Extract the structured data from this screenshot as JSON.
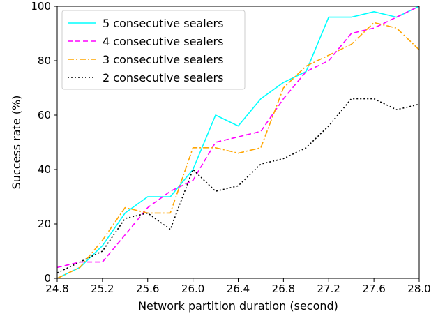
{
  "chart_data": {
    "type": "line",
    "xlabel": "Network partition duration (second)",
    "ylabel": "Success rate (%)",
    "xlim": [
      24.8,
      28.0
    ],
    "ylim": [
      0,
      100
    ],
    "xticks": [
      "24.8",
      "25.2",
      "25.6",
      "26.0",
      "26.4",
      "26.8",
      "27.2",
      "27.6",
      "28.0"
    ],
    "yticks": [
      "0",
      "20",
      "40",
      "60",
      "80",
      "100"
    ],
    "grid": false,
    "legend_position": "top-left",
    "x": [
      24.8,
      25.0,
      25.2,
      25.4,
      25.6,
      25.8,
      26.0,
      26.2,
      26.4,
      26.6,
      26.8,
      27.0,
      27.2,
      27.4,
      27.6,
      27.8,
      28.0
    ],
    "series": [
      {
        "name": "5 consecutive sealers",
        "color": "#00ffff",
        "dash": "solid",
        "values": [
          0,
          4,
          12,
          24,
          30,
          30,
          40,
          60,
          56,
          66,
          72,
          76,
          96,
          96,
          98,
          96,
          100
        ]
      },
      {
        "name": "4 consecutive sealers",
        "color": "#ff00ff",
        "dash": "dashed",
        "values": [
          4,
          6,
          6,
          16,
          26,
          32,
          36,
          50,
          52,
          54,
          66,
          76,
          80,
          90,
          92,
          96,
          100
        ]
      },
      {
        "name": "3 consecutive sealers",
        "color": "#ffa500",
        "dash": "dashdot",
        "values": [
          0,
          4,
          14,
          26,
          24,
          24,
          48,
          48,
          46,
          48,
          70,
          78,
          82,
          86,
          94,
          92,
          84
        ]
      },
      {
        "name": "2 consecutive sealers",
        "color": "#000000",
        "dash": "dotted",
        "values": [
          2,
          6,
          10,
          22,
          24,
          18,
          40,
          32,
          34,
          42,
          44,
          48,
          56,
          66,
          66,
          62,
          64
        ]
      }
    ]
  }
}
